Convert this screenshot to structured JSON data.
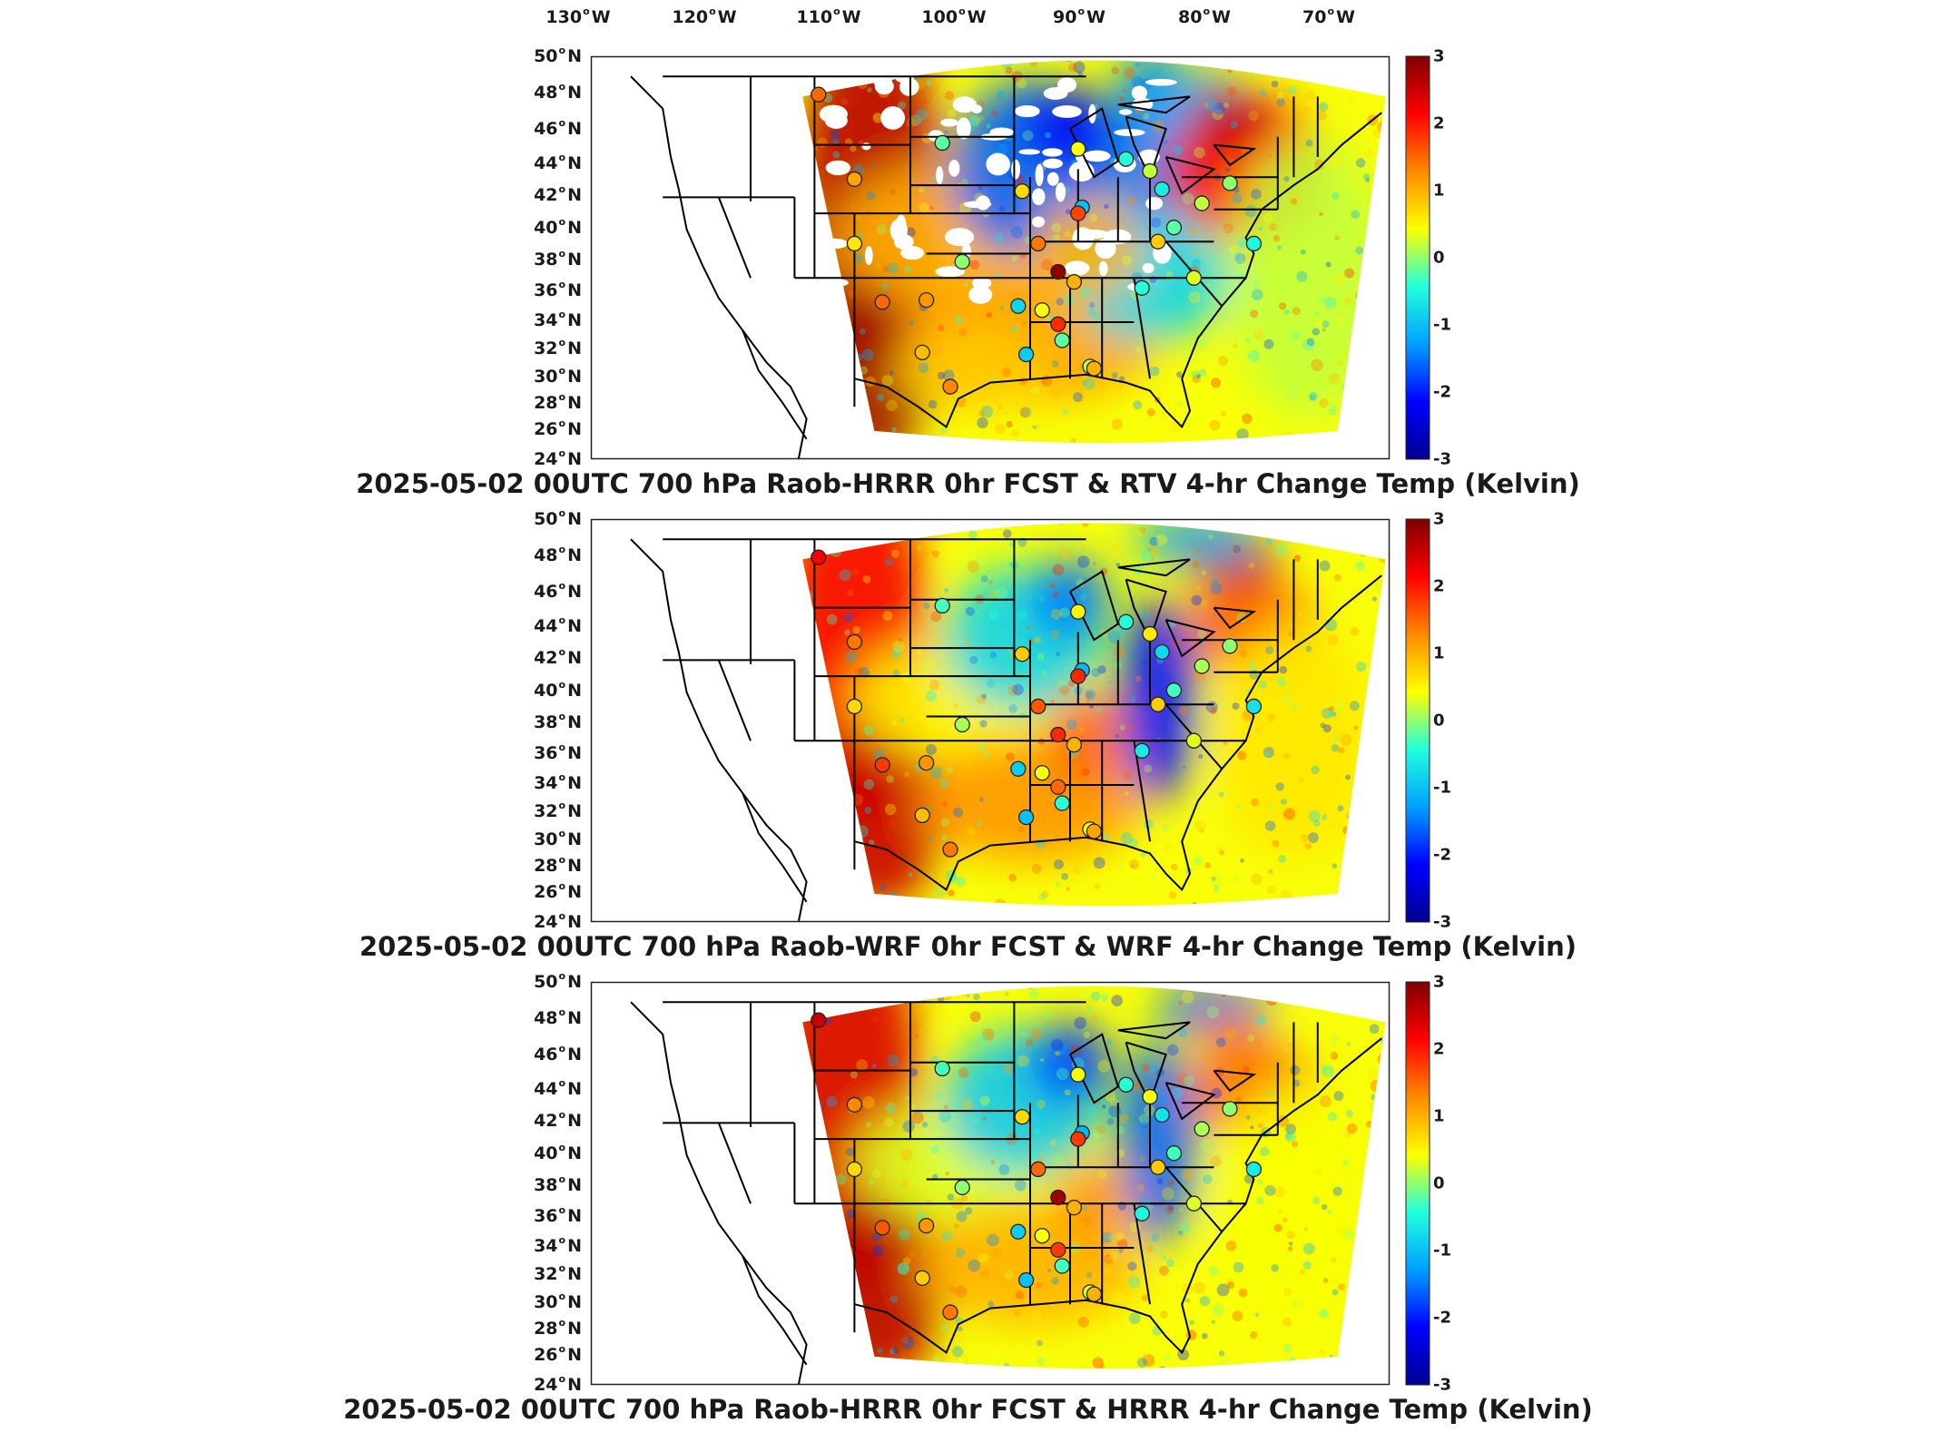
{
  "lon_labels": [
    "130",
    "120",
    "110",
    "100",
    "90",
    "80",
    "70"
  ],
  "lon_suffix": "W",
  "lat_labels": [
    "50",
    "48",
    "46",
    "44",
    "42",
    "40",
    "38",
    "36",
    "34",
    "32",
    "30",
    "28",
    "26",
    "24"
  ],
  "lat_suffix": "N",
  "colorbar": {
    "ticks": [
      "3",
      "2",
      "1",
      "0",
      "-1",
      "-2",
      "-3"
    ],
    "range": [
      -3,
      3
    ],
    "colormap": "jet",
    "colors": [
      "#00008f",
      "#0000ff",
      "#00a0ff",
      "#21ffde",
      "#ffff00",
      "#ff8a00",
      "#ff0000",
      "#800000"
    ]
  },
  "panels": [
    {
      "title": "2025-05-02 00UTC 700 hPa Raob-HRRR 0hr FCST & RTV 4-hr Change Temp (Kelvin)",
      "field": "rtv",
      "raob_values": [
        1.5,
        1.1,
        0.6,
        1.5,
        -0.2,
        0.0,
        1.2,
        0.9,
        1.3,
        -0.8,
        -0.9,
        1.4,
        0.7,
        0.4,
        0.4,
        -0.2,
        -1.0,
        2.9,
        1.9,
        1.0,
        1.7,
        0.2,
        1.0,
        -0.4,
        -0.4,
        0.2,
        0.8,
        -0.6,
        -0.2,
        0.3,
        0.2,
        0.0,
        -0.5
      ]
    },
    {
      "title": "2025-05-02 00UTC 700 hPa Raob-WRF 0hr FCST & WRF 4-hr Change Temp (Kelvin)",
      "field": "wrf",
      "raob_values": [
        2.2,
        1.4,
        0.7,
        1.8,
        -0.3,
        0.1,
        1.2,
        0.9,
        1.4,
        -0.9,
        -1.0,
        1.6,
        0.8,
        0.4,
        0.5,
        -0.4,
        -1.1,
        1.9,
        1.5,
        1.0,
        1.9,
        0.4,
        1.1,
        -0.4,
        -0.6,
        0.6,
        0.8,
        -0.8,
        -0.3,
        0.3,
        0.1,
        0.0,
        -0.7
      ]
    },
    {
      "title": "2025-05-02 00UTC 700 hPa Raob-HRRR 0hr FCST & HRRR 4-hr Change Temp (Kelvin)",
      "field": "hrrr",
      "raob_values": [
        2.5,
        1.3,
        0.7,
        1.6,
        -0.3,
        0.0,
        1.2,
        0.8,
        1.4,
        -0.9,
        -1.0,
        1.5,
        0.7,
        0.4,
        0.4,
        -0.3,
        -1.1,
        2.8,
        1.8,
        1.0,
        1.8,
        0.3,
        1.0,
        -0.4,
        -0.5,
        0.4,
        0.8,
        -0.7,
        -0.3,
        0.3,
        0.1,
        0.0,
        -0.6
      ]
    }
  ]
}
